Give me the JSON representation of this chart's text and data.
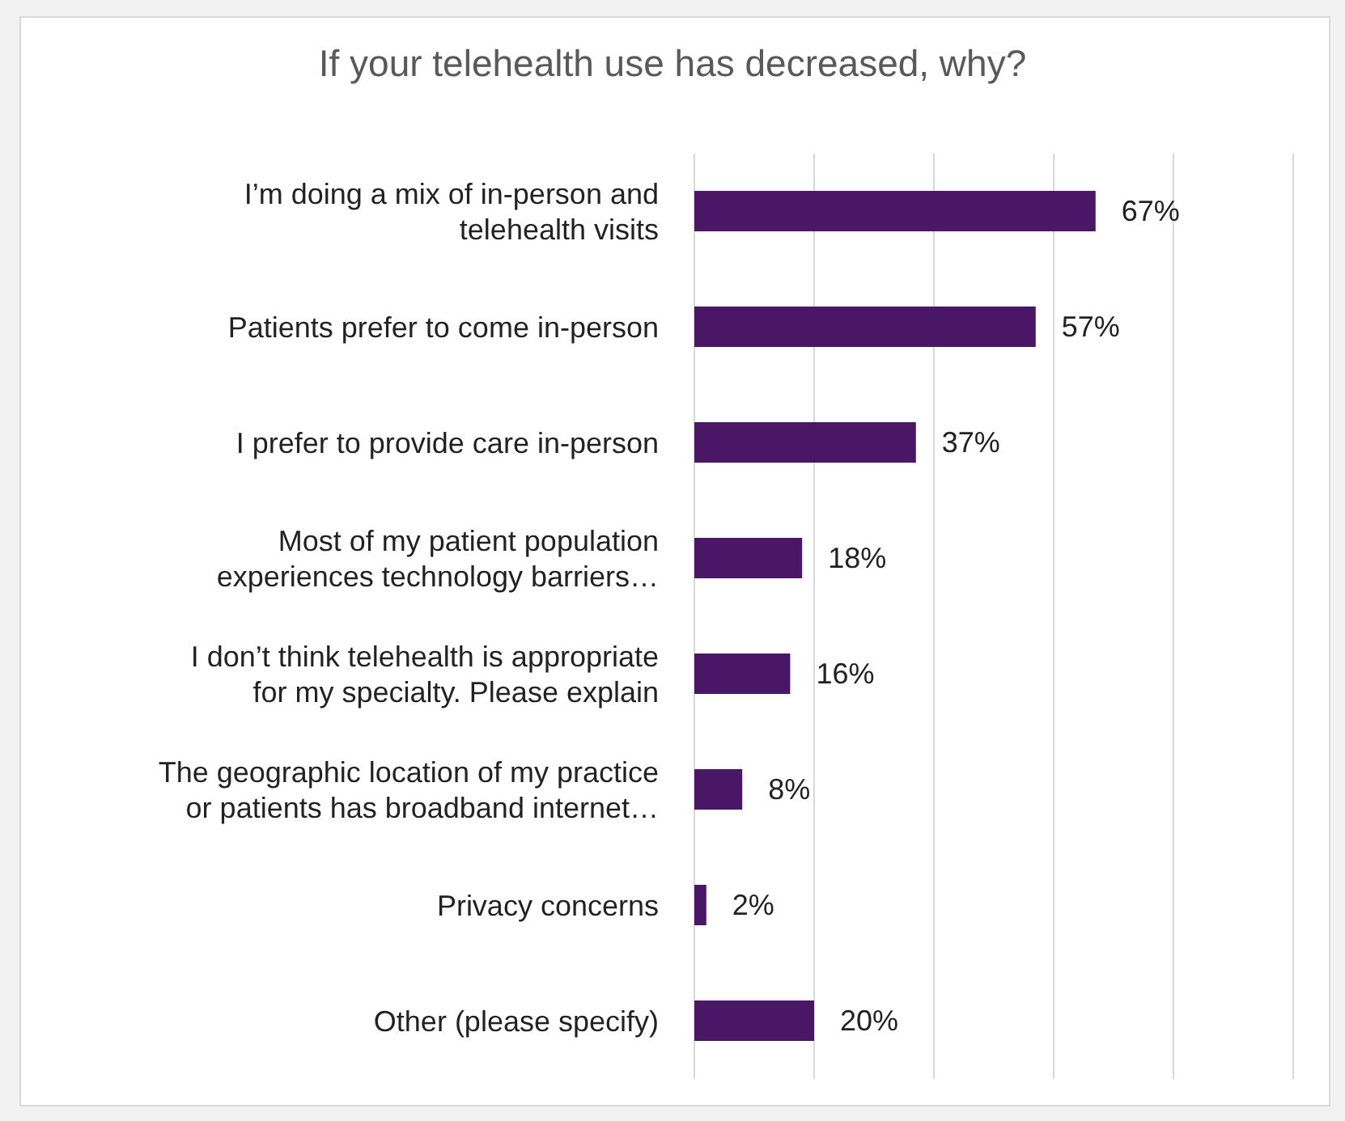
{
  "chart_data": {
    "type": "bar",
    "orientation": "horizontal",
    "title": "If your telehealth use has decreased, why?",
    "categories": [
      "I’m doing a mix of in-person and telehealth visits",
      "Patients prefer to come in-person",
      "I prefer to provide care in-person",
      "Most of my patient population experiences technology barriers…",
      "I don’t think telehealth is appropriate for my specialty. Please explain",
      "The geographic location of my practice or patients has broadband internet…",
      "Privacy concerns",
      "Other (please specify)"
    ],
    "values": [
      67,
      57,
      37,
      18,
      16,
      8,
      2,
      20
    ],
    "value_labels": [
      "67%",
      "57%",
      "37%",
      "18%",
      "16%",
      "8%",
      "2%",
      "20%"
    ],
    "color": "#4a1766",
    "xlim": [
      0,
      100
    ],
    "grid": "x",
    "tick_labels": "y",
    "legend": false
  }
}
